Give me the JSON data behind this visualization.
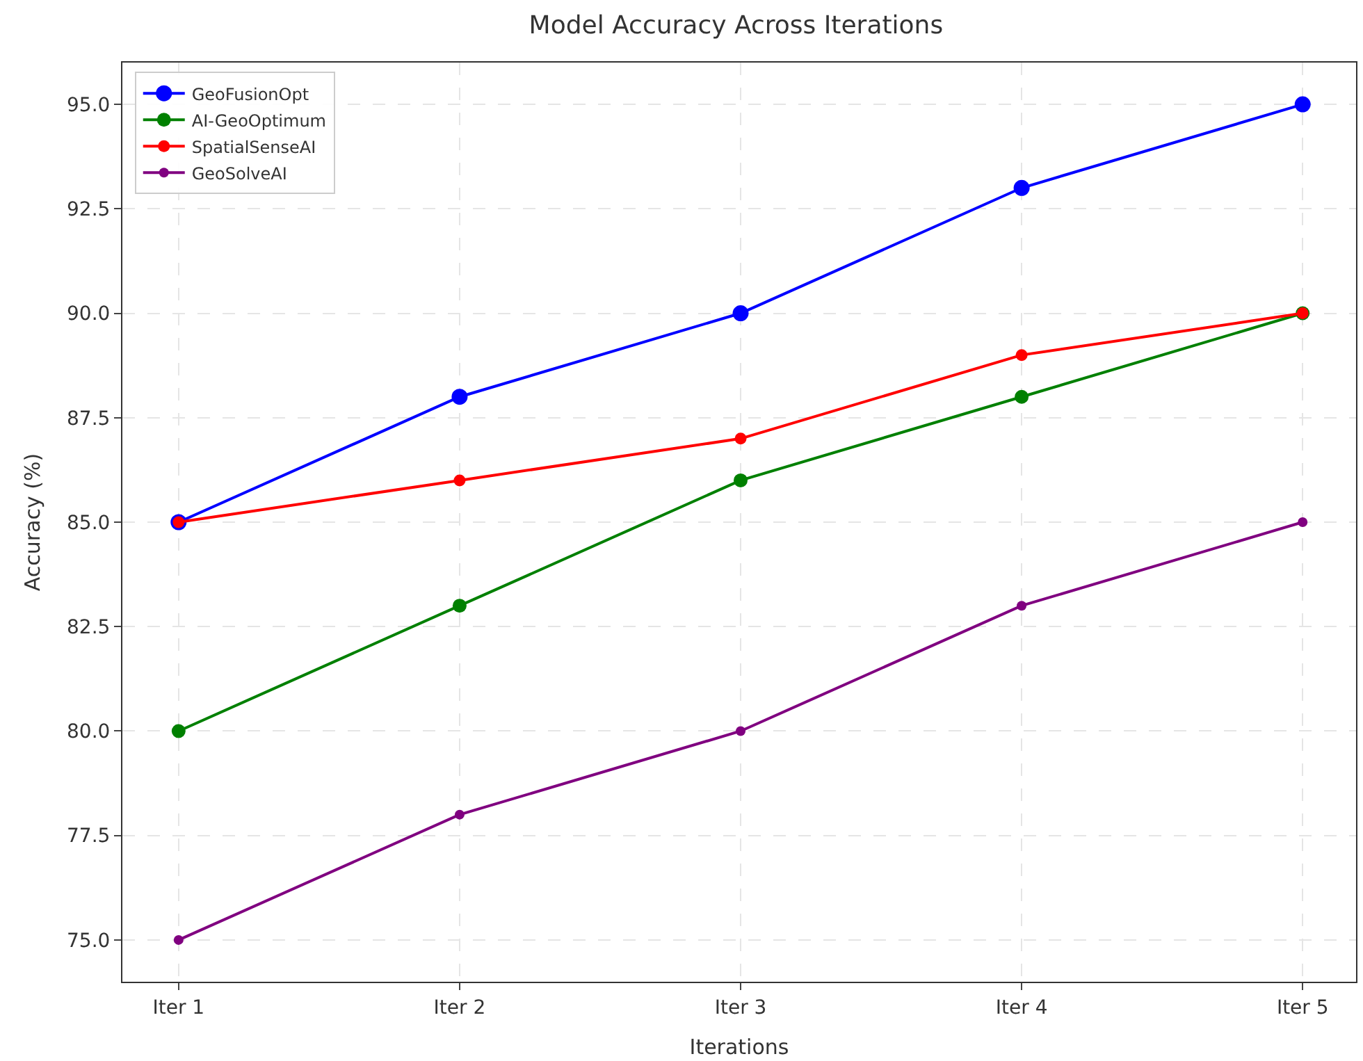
{
  "chart_data": {
    "type": "line",
    "title": "Model Accuracy Across Iterations",
    "xlabel": "Iterations",
    "ylabel": "Accuracy (%)",
    "categories": [
      "Iter 1",
      "Iter 2",
      "Iter 3",
      "Iter 4",
      "Iter 5"
    ],
    "series": [
      {
        "name": "GeoFusionOpt",
        "color": "#0000ff",
        "values": [
          85,
          88,
          90,
          93,
          95
        ]
      },
      {
        "name": "AI-GeoOptimum",
        "color": "#008000",
        "values": [
          80,
          83,
          86,
          88,
          90
        ]
      },
      {
        "name": "SpatialSenseAI",
        "color": "#ff0000",
        "values": [
          85,
          86,
          87,
          89,
          90
        ]
      },
      {
        "name": "GeoSolveAI",
        "color": "#800080",
        "values": [
          75,
          78,
          80,
          83,
          85
        ]
      }
    ],
    "ylim": [
      74,
      96
    ],
    "yticks": [
      {
        "value": 75,
        "label": "75.0"
      },
      {
        "value": 77.5,
        "label": "77.5"
      },
      {
        "value": 80,
        "label": "80.0"
      },
      {
        "value": 82.5,
        "label": "82.5"
      },
      {
        "value": 85,
        "label": "85.0"
      },
      {
        "value": 87.5,
        "label": "87.5"
      },
      {
        "value": 90,
        "label": "90.0"
      },
      {
        "value": 92.5,
        "label": "92.5"
      },
      {
        "value": 95,
        "label": "95.0"
      }
    ],
    "grid": true,
    "legend": "top left",
    "marker": "circle",
    "line_style": "solid"
  }
}
